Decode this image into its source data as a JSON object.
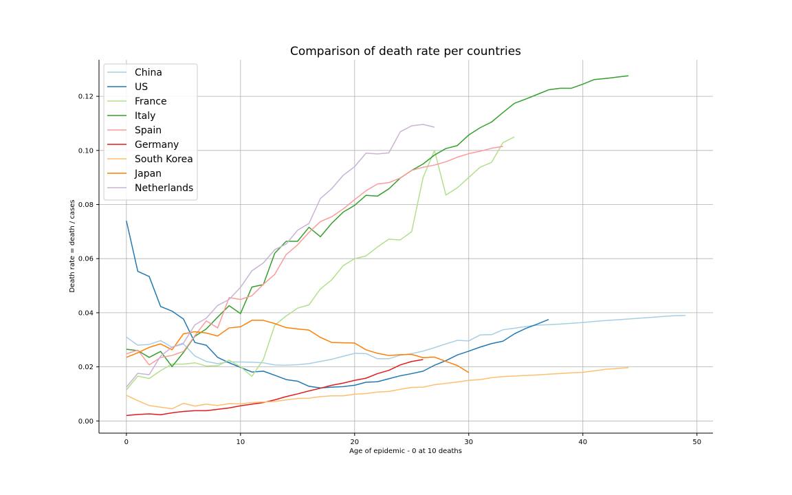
{
  "chart_data": {
    "type": "line",
    "title": "Comparison of death rate per countries",
    "xlabel": "Age of epidemic - 0 at 10 deaths",
    "ylabel": "Death rate = death / cases",
    "xlim": [
      -2.4,
      51.4
    ],
    "ylim": [
      -0.0045,
      0.1335
    ],
    "x_ticks": [
      0,
      10,
      20,
      30,
      40,
      50
    ],
    "y_ticks": [
      0.0,
      0.02,
      0.04,
      0.06,
      0.08,
      0.1,
      0.12
    ],
    "x_tick_labels": [
      "0",
      "10",
      "20",
      "30",
      "40",
      "50"
    ],
    "y_tick_labels": [
      "0.00",
      "0.02",
      "0.04",
      "0.06",
      "0.08",
      "0.10",
      "0.12"
    ],
    "grid": true,
    "legend_position": "top-left",
    "series": [
      {
        "name": "China",
        "color": "#a6cee3",
        "values": [
          0.031,
          0.028,
          0.0283,
          0.0297,
          0.0272,
          0.0285,
          0.024,
          0.022,
          0.0212,
          0.0218,
          0.0218,
          0.0217,
          0.0215,
          0.0207,
          0.0206,
          0.0208,
          0.0212,
          0.022,
          0.0228,
          0.0239,
          0.025,
          0.0249,
          0.023,
          0.023,
          0.0243,
          0.0249,
          0.0258,
          0.0271,
          0.0285,
          0.0298,
          0.0296,
          0.0318,
          0.0319,
          0.0337,
          0.0343,
          0.0349,
          0.0354,
          0.0356,
          0.0358,
          0.0361,
          0.0364,
          0.0368,
          0.0371,
          0.0374,
          0.0377,
          0.038,
          0.0383,
          0.0386,
          0.0389,
          0.039
        ]
      },
      {
        "name": "US",
        "color": "#1f78b4",
        "values": [
          0.074,
          0.0553,
          0.0534,
          0.0423,
          0.0406,
          0.0377,
          0.029,
          0.028,
          0.0235,
          0.0215,
          0.0198,
          0.0181,
          0.0184,
          0.0169,
          0.0153,
          0.0147,
          0.0128,
          0.0122,
          0.0125,
          0.0127,
          0.0132,
          0.0143,
          0.0145,
          0.0156,
          0.0167,
          0.0175,
          0.0184,
          0.0206,
          0.0223,
          0.0244,
          0.0258,
          0.0273,
          0.0286,
          0.0295,
          0.0322,
          0.0342,
          0.0358,
          0.0375
        ]
      },
      {
        "name": "France",
        "color": "#b2df8a",
        "values": [
          0.0115,
          0.0166,
          0.0157,
          0.0186,
          0.021,
          0.021,
          0.0215,
          0.0203,
          0.0204,
          0.0225,
          0.02,
          0.0165,
          0.0227,
          0.0354,
          0.0388,
          0.0417,
          0.0429,
          0.0488,
          0.0522,
          0.0574,
          0.06,
          0.061,
          0.0643,
          0.0672,
          0.0669,
          0.07,
          0.09,
          0.1,
          0.0835,
          0.0862,
          0.09,
          0.0938,
          0.0956,
          0.1029,
          0.105
        ]
      },
      {
        "name": "Italy",
        "color": "#33a02c",
        "values": [
          0.0265,
          0.026,
          0.0235,
          0.0257,
          0.0201,
          0.0253,
          0.0313,
          0.034,
          0.0384,
          0.0426,
          0.0397,
          0.0495,
          0.0504,
          0.062,
          0.0664,
          0.0664,
          0.0716,
          0.0681,
          0.0731,
          0.0772,
          0.0797,
          0.0834,
          0.0831,
          0.0858,
          0.0898,
          0.0926,
          0.095,
          0.0983,
          0.1007,
          0.1018,
          0.1057,
          0.1084,
          0.1105,
          0.114,
          0.1174,
          0.119,
          0.1207,
          0.1224,
          0.123,
          0.123,
          0.1245,
          0.1262,
          0.1266,
          0.1271,
          0.1276
        ]
      },
      {
        "name": "Spain",
        "color": "#fb9a99",
        "values": [
          0.0248,
          0.0262,
          0.0207,
          0.0235,
          0.0242,
          0.0257,
          0.0315,
          0.037,
          0.0344,
          0.0456,
          0.0449,
          0.0463,
          0.0505,
          0.0542,
          0.0615,
          0.0651,
          0.0697,
          0.0737,
          0.0755,
          0.0784,
          0.0818,
          0.0851,
          0.0876,
          0.0881,
          0.0898,
          0.0926,
          0.0938,
          0.0946,
          0.0958,
          0.0975,
          0.0988,
          0.0997,
          0.1008,
          0.1015
        ]
      },
      {
        "name": "Germany",
        "color": "#e31a1c",
        "values": [
          0.002,
          0.0024,
          0.0026,
          0.0023,
          0.003,
          0.0035,
          0.0038,
          0.0038,
          0.0043,
          0.0048,
          0.0056,
          0.0062,
          0.0068,
          0.0078,
          0.009,
          0.01,
          0.0111,
          0.0121,
          0.0132,
          0.014,
          0.015,
          0.0158,
          0.0175,
          0.0187,
          0.0207,
          0.022,
          0.0227
        ]
      },
      {
        "name": "South Korea",
        "color": "#fdbf6f",
        "values": [
          0.0095,
          0.0075,
          0.0057,
          0.0051,
          0.0045,
          0.0065,
          0.0055,
          0.0062,
          0.0057,
          0.0064,
          0.0063,
          0.0068,
          0.007,
          0.0072,
          0.0078,
          0.0083,
          0.0084,
          0.009,
          0.0093,
          0.0093,
          0.0099,
          0.0101,
          0.0107,
          0.0109,
          0.0117,
          0.0124,
          0.0125,
          0.0134,
          0.0139,
          0.0144,
          0.015,
          0.0153,
          0.016,
          0.0164,
          0.0166,
          0.0168,
          0.017,
          0.0173,
          0.0175,
          0.0178,
          0.018,
          0.0185,
          0.0191,
          0.0194,
          0.0197
        ]
      },
      {
        "name": "Japan",
        "color": "#ff7f00",
        "values": [
          0.0235,
          0.0252,
          0.0272,
          0.0285,
          0.0263,
          0.0322,
          0.033,
          0.0325,
          0.0314,
          0.0344,
          0.0348,
          0.0372,
          0.0372,
          0.036,
          0.0345,
          0.034,
          0.0336,
          0.0309,
          0.029,
          0.0289,
          0.0288,
          0.0263,
          0.025,
          0.0242,
          0.0245,
          0.0246,
          0.0234,
          0.0236,
          0.022,
          0.0205,
          0.0179
        ]
      },
      {
        "name": "Netherlands",
        "color": "#cab2d6",
        "values": [
          0.0125,
          0.0176,
          0.0171,
          0.024,
          0.0273,
          0.0288,
          0.0355,
          0.038,
          0.0427,
          0.0449,
          0.0494,
          0.0555,
          0.0584,
          0.0633,
          0.0654,
          0.0705,
          0.073,
          0.0822,
          0.0859,
          0.0908,
          0.094,
          0.099,
          0.0987,
          0.0991,
          0.1069,
          0.1091,
          0.1096,
          0.1086
        ]
      }
    ]
  }
}
